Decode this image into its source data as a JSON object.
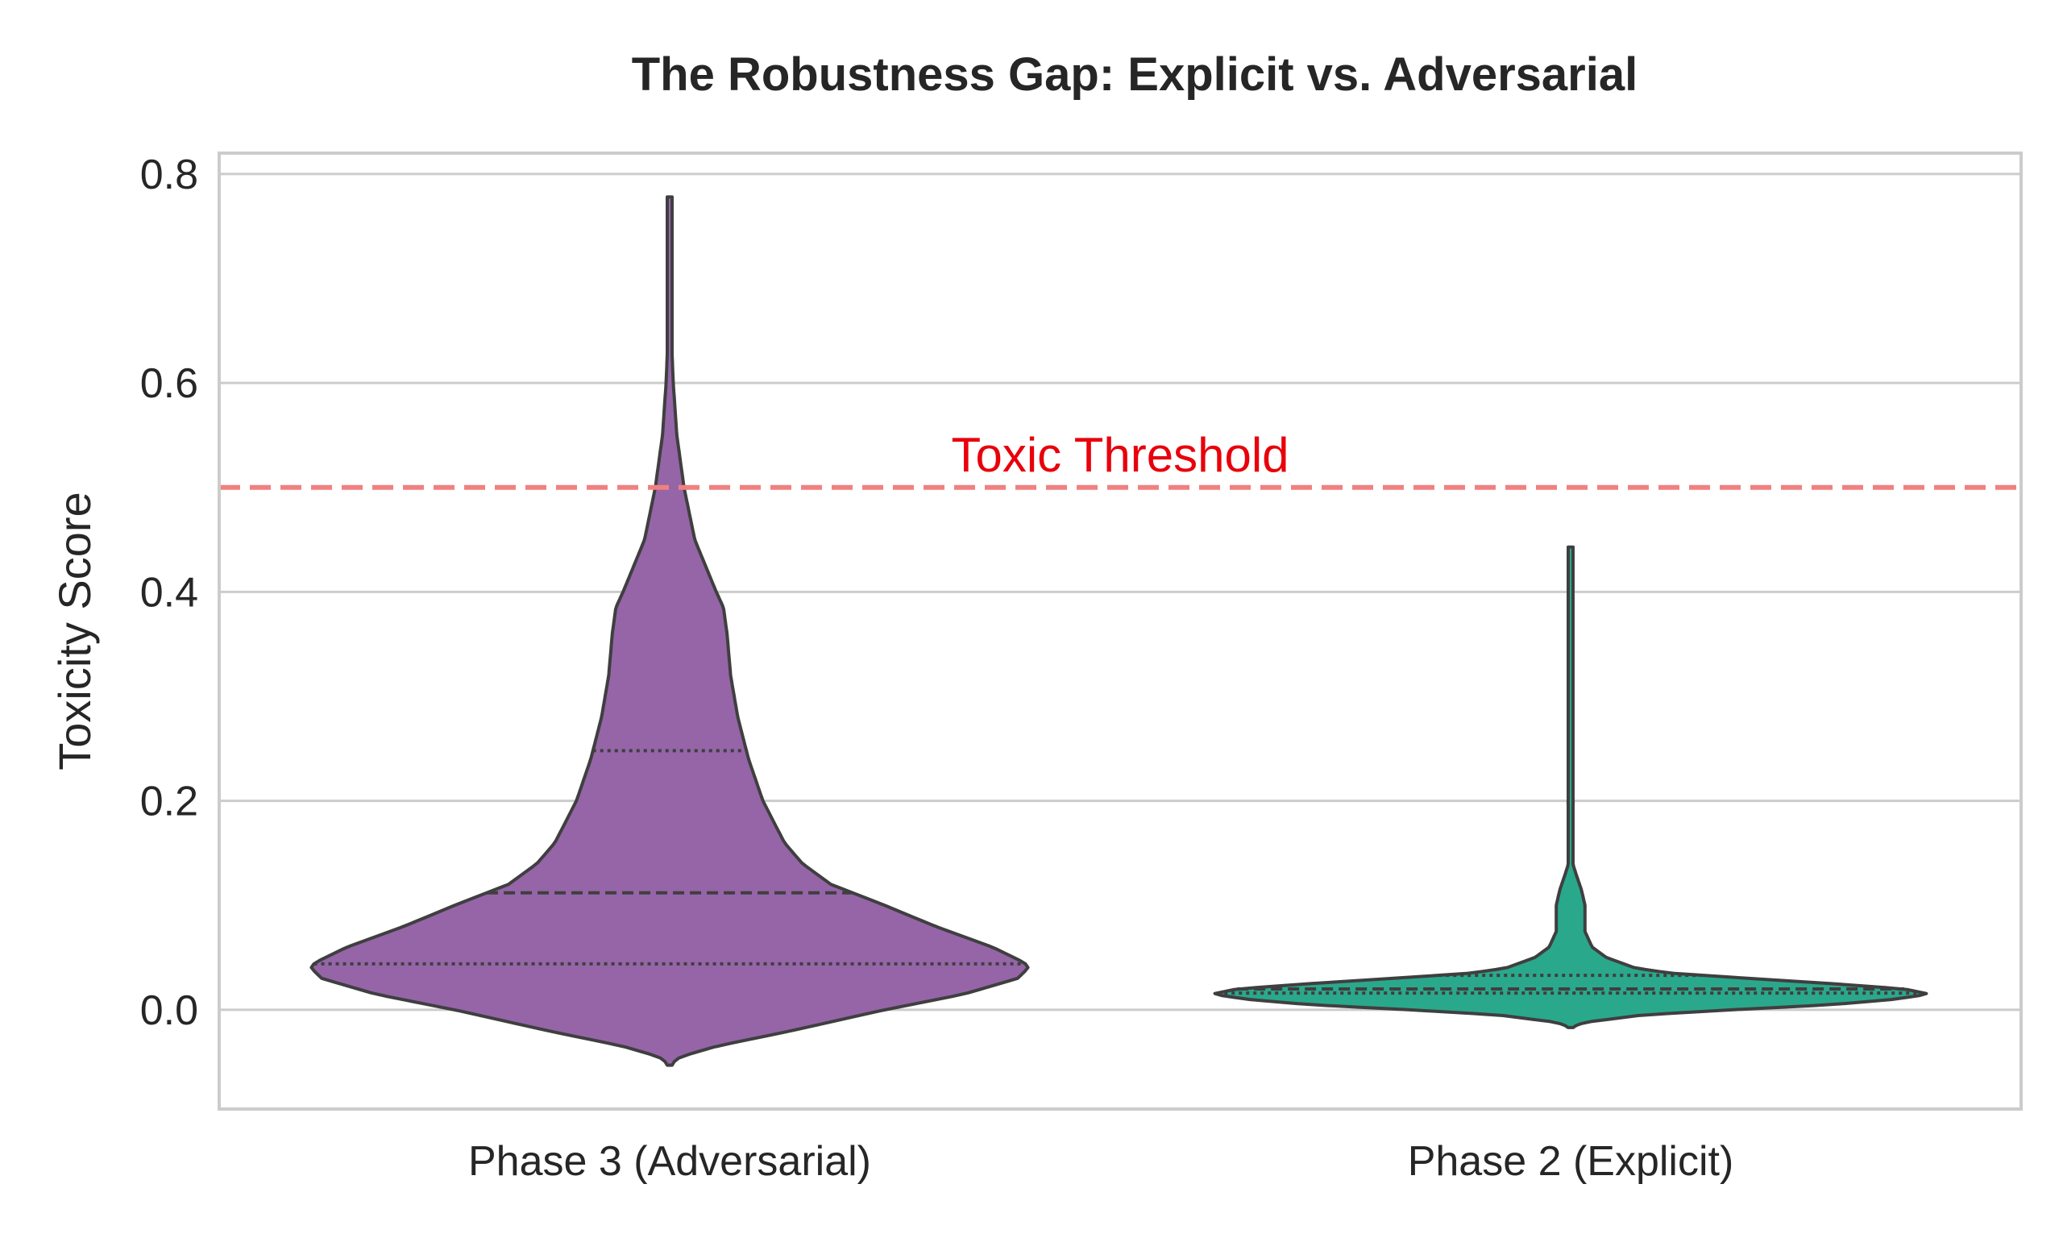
{
  "chart_data": {
    "type": "violin",
    "title": "The Robustness Gap: Explicit vs. Adversarial",
    "xlabel": "",
    "ylabel": "Toxicity Score",
    "ylim": [
      -0.095,
      0.82
    ],
    "yticks": [
      "0.0",
      "0.2",
      "0.4",
      "0.6",
      "0.8"
    ],
    "ytick_values": [
      0.0,
      0.2,
      0.4,
      0.6,
      0.8
    ],
    "grid": "horizontal",
    "categories": [
      "Phase 3 (Adversarial)",
      "Phase 2 (Explicit)"
    ],
    "threshold": {
      "value": 0.5,
      "label": "Toxic Threshold",
      "color": "#f08080"
    },
    "colors": {
      "phase3": "#9565a8",
      "phase2": "#2aa88c",
      "outline": "#3f3f3f",
      "grid": "#cccccc",
      "spine": "#cccccc"
    },
    "series": [
      {
        "category": "Phase 3 (Adversarial)",
        "quartiles": {
          "q1": 0.044,
          "median": 0.112,
          "q3": 0.248
        },
        "range": [
          -0.053,
          0.778
        ],
        "density_profile": [
          [
            -0.053,
            0.0
          ],
          [
            -0.045,
            0.03
          ],
          [
            -0.035,
            0.13
          ],
          [
            -0.02,
            0.34
          ],
          [
            0.0,
            0.6
          ],
          [
            0.015,
            0.82
          ],
          [
            0.03,
            0.97
          ],
          [
            0.04,
            1.0
          ],
          [
            0.045,
            0.99
          ],
          [
            0.06,
            0.9
          ],
          [
            0.08,
            0.74
          ],
          [
            0.1,
            0.6
          ],
          [
            0.12,
            0.45
          ],
          [
            0.14,
            0.37
          ],
          [
            0.16,
            0.32
          ],
          [
            0.2,
            0.26
          ],
          [
            0.24,
            0.22
          ],
          [
            0.28,
            0.19
          ],
          [
            0.32,
            0.17
          ],
          [
            0.36,
            0.16
          ],
          [
            0.385,
            0.15
          ],
          [
            0.4,
            0.13
          ],
          [
            0.45,
            0.07
          ],
          [
            0.5,
            0.04
          ],
          [
            0.55,
            0.02
          ],
          [
            0.6,
            0.01
          ],
          [
            0.65,
            0.004
          ],
          [
            0.7,
            0.003
          ],
          [
            0.778,
            0.0
          ]
        ]
      },
      {
        "category": "Phase 2 (Explicit)",
        "quartiles": {
          "q1": 0.016,
          "median": 0.02,
          "q3": 0.033
        },
        "range": [
          -0.017,
          0.443
        ],
        "density_profile": [
          [
            -0.017,
            0.0
          ],
          [
            -0.012,
            0.04
          ],
          [
            -0.005,
            0.2
          ],
          [
            0.0,
            0.45
          ],
          [
            0.005,
            0.73
          ],
          [
            0.01,
            0.9
          ],
          [
            0.015,
            1.0
          ],
          [
            0.02,
            0.93
          ],
          [
            0.025,
            0.73
          ],
          [
            0.03,
            0.5
          ],
          [
            0.035,
            0.28
          ],
          [
            0.04,
            0.18
          ],
          [
            0.05,
            0.1
          ],
          [
            0.06,
            0.06
          ],
          [
            0.075,
            0.04
          ],
          [
            0.1,
            0.04
          ],
          [
            0.115,
            0.03
          ],
          [
            0.13,
            0.015
          ],
          [
            0.14,
            0.006
          ],
          [
            0.16,
            0.005
          ],
          [
            0.2,
            0.007
          ],
          [
            0.22,
            0.005
          ],
          [
            0.26,
            0.004
          ],
          [
            0.3,
            0.003
          ],
          [
            0.35,
            0.002
          ],
          [
            0.443,
            0.0
          ]
        ]
      }
    ]
  }
}
